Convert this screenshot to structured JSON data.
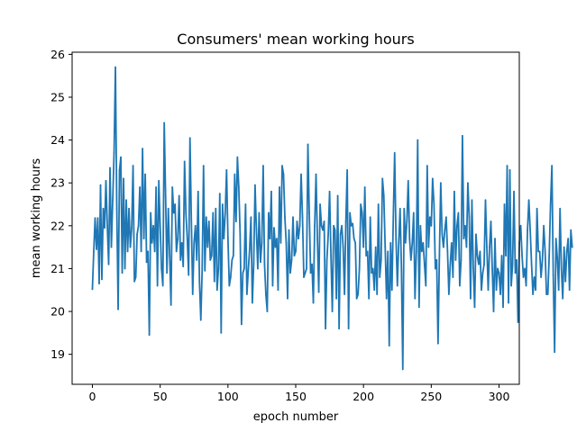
{
  "chart_data": {
    "type": "line",
    "title": "Consumers' mean working hours",
    "xlabel": "epoch number",
    "ylabel": "mean working hours",
    "xlim": [
      -14.95,
      314.95
    ],
    "ylim": [
      18.3,
      26.05
    ],
    "xticks": [
      0,
      50,
      100,
      150,
      200,
      250,
      300
    ],
    "yticks": [
      19,
      20,
      21,
      22,
      23,
      24,
      25,
      26
    ],
    "grid": false,
    "line_color": "#1f77b4",
    "series": [
      {
        "x_start": 0,
        "x_step": 1,
        "values": [
          20.52,
          21.4,
          22.18,
          21.45,
          22.18,
          20.65,
          22.95,
          20.75,
          22.4,
          21.95,
          23.05,
          22.0,
          21.1,
          23.35,
          21.5,
          22.6,
          23.7,
          25.7,
          22.4,
          20.05,
          23.3,
          23.6,
          20.9,
          23.1,
          21.0,
          22.6,
          21.4,
          22.4,
          21.5,
          21.95,
          23.4,
          20.7,
          20.8,
          21.8,
          22.0,
          22.9,
          21.4,
          23.8,
          21.7,
          23.2,
          21.15,
          21.4,
          19.45,
          22.3,
          21.6,
          22.0,
          21.4,
          22.9,
          20.6,
          23.05,
          22.0,
          21.0,
          20.6,
          24.4,
          22.7,
          20.9,
          22.4,
          21.3,
          20.15,
          22.9,
          22.3,
          22.5,
          21.4,
          21.7,
          22.7,
          21.2,
          21.6,
          21.05,
          23.5,
          22.3,
          21.7,
          20.85,
          24.05,
          22.15,
          20.4,
          21.6,
          22.0,
          21.2,
          22.8,
          20.7,
          19.8,
          21.0,
          23.4,
          20.95,
          22.2,
          21.5,
          22.1,
          21.2,
          21.3,
          22.3,
          20.7,
          22.4,
          20.5,
          21.0,
          22.75,
          19.5,
          22.5,
          21.7,
          22.3,
          23.3,
          21.7,
          20.6,
          20.8,
          21.2,
          21.3,
          23.2,
          22.1,
          23.6,
          22.9,
          21.8,
          19.7,
          20.9,
          21.0,
          22.5,
          20.4,
          20.95,
          21.45,
          22.2,
          20.2,
          21.1,
          22.95,
          21.9,
          21.0,
          22.3,
          21.15,
          21.6,
          23.4,
          21.1,
          20.4,
          20.0,
          22.3,
          21.7,
          22.8,
          20.6,
          21.95,
          21.5,
          21.7,
          20.5,
          22.9,
          21.6,
          23.4,
          23.2,
          22.2,
          21.6,
          20.3,
          21.9,
          20.9,
          21.2,
          22.2,
          21.3,
          21.4,
          22.1,
          21.7,
          22.0,
          23.2,
          22.2,
          20.8,
          20.9,
          21.0,
          23.9,
          22.3,
          20.9,
          21.1,
          20.2,
          22.0,
          23.2,
          21.7,
          20.45,
          22.5,
          22.0,
          21.9,
          22.1,
          19.6,
          21.2,
          21.8,
          22.8,
          21.3,
          20.0,
          22.0,
          21.9,
          20.3,
          22.7,
          19.6,
          21.8,
          22.0,
          21.5,
          20.4,
          22.1,
          23.3,
          19.6,
          22.3,
          22.0,
          22.05,
          21.7,
          21.6,
          20.3,
          20.4,
          21.0,
          22.5,
          22.3,
          21.5,
          22.9,
          21.3,
          21.4,
          20.3,
          22.2,
          20.9,
          21.0,
          20.5,
          21.5,
          20.4,
          22.5,
          20.8,
          21.2,
          23.1,
          22.7,
          21.5,
          20.3,
          21.4,
          19.2,
          21.6,
          20.5,
          22.2,
          23.7,
          21.7,
          20.6,
          21.6,
          22.4,
          21.0,
          18.65,
          22.4,
          21.6,
          22.1,
          23.05,
          21.7,
          21.2,
          21.6,
          22.3,
          20.3,
          21.4,
          24.0,
          20.1,
          22.0,
          21.4,
          21.6,
          21.1,
          20.6,
          23.4,
          21.5,
          22.2,
          22.0,
          23.1,
          22.5,
          21.0,
          21.2,
          19.25,
          21.3,
          23.0,
          21.8,
          21.5,
          21.9,
          22.2,
          21.4,
          20.4,
          21.1,
          21.6,
          20.8,
          22.8,
          21.2,
          22.0,
          22.3,
          20.6,
          21.2,
          24.1,
          21.7,
          22.0,
          21.5,
          23.0,
          22.2,
          20.3,
          22.6,
          21.0,
          20.1,
          21.8,
          21.3,
          21.1,
          21.4,
          20.5,
          20.9,
          21.1,
          22.6,
          21.5,
          20.5,
          21.5,
          22.1,
          21.0,
          20.0,
          21.7,
          20.5,
          21.0,
          20.9,
          20.4,
          21.3,
          20.1,
          22.5,
          21.3,
          23.4,
          20.2,
          23.3,
          20.6,
          21.1,
          22.8,
          20.9,
          21.2,
          19.75,
          21.6,
          22.0,
          21.3,
          20.8,
          21.0,
          20.6,
          21.9,
          22.6,
          21.9,
          21.1,
          20.4,
          20.8,
          20.5,
          22.4,
          21.4,
          21.4,
          20.8,
          21.2,
          22.0,
          21.4,
          20.4,
          20.4,
          21.3,
          22.5,
          23.4,
          20.85,
          19.05,
          21.7,
          21.25,
          20.5,
          22.4,
          21.0,
          20.3,
          21.5,
          20.7,
          21.4,
          21.7,
          20.5,
          21.9,
          21.5
        ]
      }
    ]
  }
}
